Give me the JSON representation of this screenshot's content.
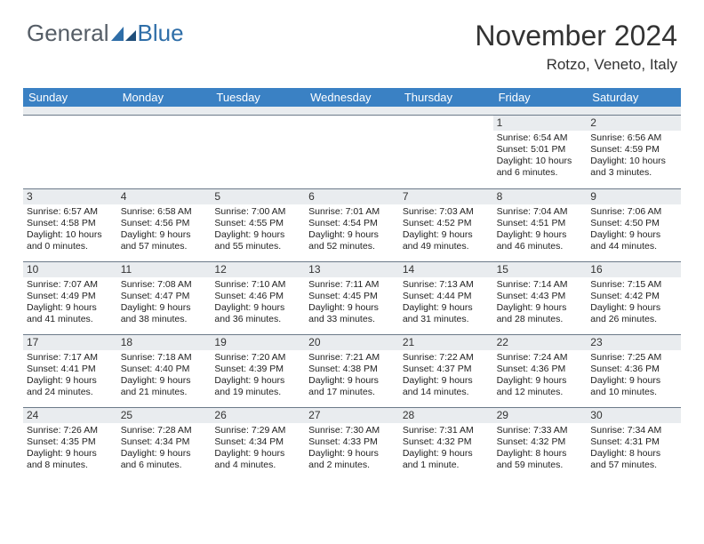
{
  "logo": {
    "text_general": "General",
    "text_blue": "Blue"
  },
  "header": {
    "title": "November 2024",
    "location": "Rotzo, Veneto, Italy"
  },
  "colors": {
    "header_bar": "#3a81c4",
    "daynum_bg": "#e9ecef",
    "rule": "#6c7a89",
    "logo_gray": "#555d66",
    "logo_blue": "#2f6ea8"
  },
  "dow": [
    "Sunday",
    "Monday",
    "Tuesday",
    "Wednesday",
    "Thursday",
    "Friday",
    "Saturday"
  ],
  "weeks": [
    [
      null,
      null,
      null,
      null,
      null,
      {
        "n": "1",
        "sunrise": "Sunrise: 6:54 AM",
        "sunset": "Sunset: 5:01 PM",
        "daylight": "Daylight: 10 hours and 6 minutes."
      },
      {
        "n": "2",
        "sunrise": "Sunrise: 6:56 AM",
        "sunset": "Sunset: 4:59 PM",
        "daylight": "Daylight: 10 hours and 3 minutes."
      }
    ],
    [
      {
        "n": "3",
        "sunrise": "Sunrise: 6:57 AM",
        "sunset": "Sunset: 4:58 PM",
        "daylight": "Daylight: 10 hours and 0 minutes."
      },
      {
        "n": "4",
        "sunrise": "Sunrise: 6:58 AM",
        "sunset": "Sunset: 4:56 PM",
        "daylight": "Daylight: 9 hours and 57 minutes."
      },
      {
        "n": "5",
        "sunrise": "Sunrise: 7:00 AM",
        "sunset": "Sunset: 4:55 PM",
        "daylight": "Daylight: 9 hours and 55 minutes."
      },
      {
        "n": "6",
        "sunrise": "Sunrise: 7:01 AM",
        "sunset": "Sunset: 4:54 PM",
        "daylight": "Daylight: 9 hours and 52 minutes."
      },
      {
        "n": "7",
        "sunrise": "Sunrise: 7:03 AM",
        "sunset": "Sunset: 4:52 PM",
        "daylight": "Daylight: 9 hours and 49 minutes."
      },
      {
        "n": "8",
        "sunrise": "Sunrise: 7:04 AM",
        "sunset": "Sunset: 4:51 PM",
        "daylight": "Daylight: 9 hours and 46 minutes."
      },
      {
        "n": "9",
        "sunrise": "Sunrise: 7:06 AM",
        "sunset": "Sunset: 4:50 PM",
        "daylight": "Daylight: 9 hours and 44 minutes."
      }
    ],
    [
      {
        "n": "10",
        "sunrise": "Sunrise: 7:07 AM",
        "sunset": "Sunset: 4:49 PM",
        "daylight": "Daylight: 9 hours and 41 minutes."
      },
      {
        "n": "11",
        "sunrise": "Sunrise: 7:08 AM",
        "sunset": "Sunset: 4:47 PM",
        "daylight": "Daylight: 9 hours and 38 minutes."
      },
      {
        "n": "12",
        "sunrise": "Sunrise: 7:10 AM",
        "sunset": "Sunset: 4:46 PM",
        "daylight": "Daylight: 9 hours and 36 minutes."
      },
      {
        "n": "13",
        "sunrise": "Sunrise: 7:11 AM",
        "sunset": "Sunset: 4:45 PM",
        "daylight": "Daylight: 9 hours and 33 minutes."
      },
      {
        "n": "14",
        "sunrise": "Sunrise: 7:13 AM",
        "sunset": "Sunset: 4:44 PM",
        "daylight": "Daylight: 9 hours and 31 minutes."
      },
      {
        "n": "15",
        "sunrise": "Sunrise: 7:14 AM",
        "sunset": "Sunset: 4:43 PM",
        "daylight": "Daylight: 9 hours and 28 minutes."
      },
      {
        "n": "16",
        "sunrise": "Sunrise: 7:15 AM",
        "sunset": "Sunset: 4:42 PM",
        "daylight": "Daylight: 9 hours and 26 minutes."
      }
    ],
    [
      {
        "n": "17",
        "sunrise": "Sunrise: 7:17 AM",
        "sunset": "Sunset: 4:41 PM",
        "daylight": "Daylight: 9 hours and 24 minutes."
      },
      {
        "n": "18",
        "sunrise": "Sunrise: 7:18 AM",
        "sunset": "Sunset: 4:40 PM",
        "daylight": "Daylight: 9 hours and 21 minutes."
      },
      {
        "n": "19",
        "sunrise": "Sunrise: 7:20 AM",
        "sunset": "Sunset: 4:39 PM",
        "daylight": "Daylight: 9 hours and 19 minutes."
      },
      {
        "n": "20",
        "sunrise": "Sunrise: 7:21 AM",
        "sunset": "Sunset: 4:38 PM",
        "daylight": "Daylight: 9 hours and 17 minutes."
      },
      {
        "n": "21",
        "sunrise": "Sunrise: 7:22 AM",
        "sunset": "Sunset: 4:37 PM",
        "daylight": "Daylight: 9 hours and 14 minutes."
      },
      {
        "n": "22",
        "sunrise": "Sunrise: 7:24 AM",
        "sunset": "Sunset: 4:36 PM",
        "daylight": "Daylight: 9 hours and 12 minutes."
      },
      {
        "n": "23",
        "sunrise": "Sunrise: 7:25 AM",
        "sunset": "Sunset: 4:36 PM",
        "daylight": "Daylight: 9 hours and 10 minutes."
      }
    ],
    [
      {
        "n": "24",
        "sunrise": "Sunrise: 7:26 AM",
        "sunset": "Sunset: 4:35 PM",
        "daylight": "Daylight: 9 hours and 8 minutes."
      },
      {
        "n": "25",
        "sunrise": "Sunrise: 7:28 AM",
        "sunset": "Sunset: 4:34 PM",
        "daylight": "Daylight: 9 hours and 6 minutes."
      },
      {
        "n": "26",
        "sunrise": "Sunrise: 7:29 AM",
        "sunset": "Sunset: 4:34 PM",
        "daylight": "Daylight: 9 hours and 4 minutes."
      },
      {
        "n": "27",
        "sunrise": "Sunrise: 7:30 AM",
        "sunset": "Sunset: 4:33 PM",
        "daylight": "Daylight: 9 hours and 2 minutes."
      },
      {
        "n": "28",
        "sunrise": "Sunrise: 7:31 AM",
        "sunset": "Sunset: 4:32 PM",
        "daylight": "Daylight: 9 hours and 1 minute."
      },
      {
        "n": "29",
        "sunrise": "Sunrise: 7:33 AM",
        "sunset": "Sunset: 4:32 PM",
        "daylight": "Daylight: 8 hours and 59 minutes."
      },
      {
        "n": "30",
        "sunrise": "Sunrise: 7:34 AM",
        "sunset": "Sunset: 4:31 PM",
        "daylight": "Daylight: 8 hours and 57 minutes."
      }
    ]
  ]
}
